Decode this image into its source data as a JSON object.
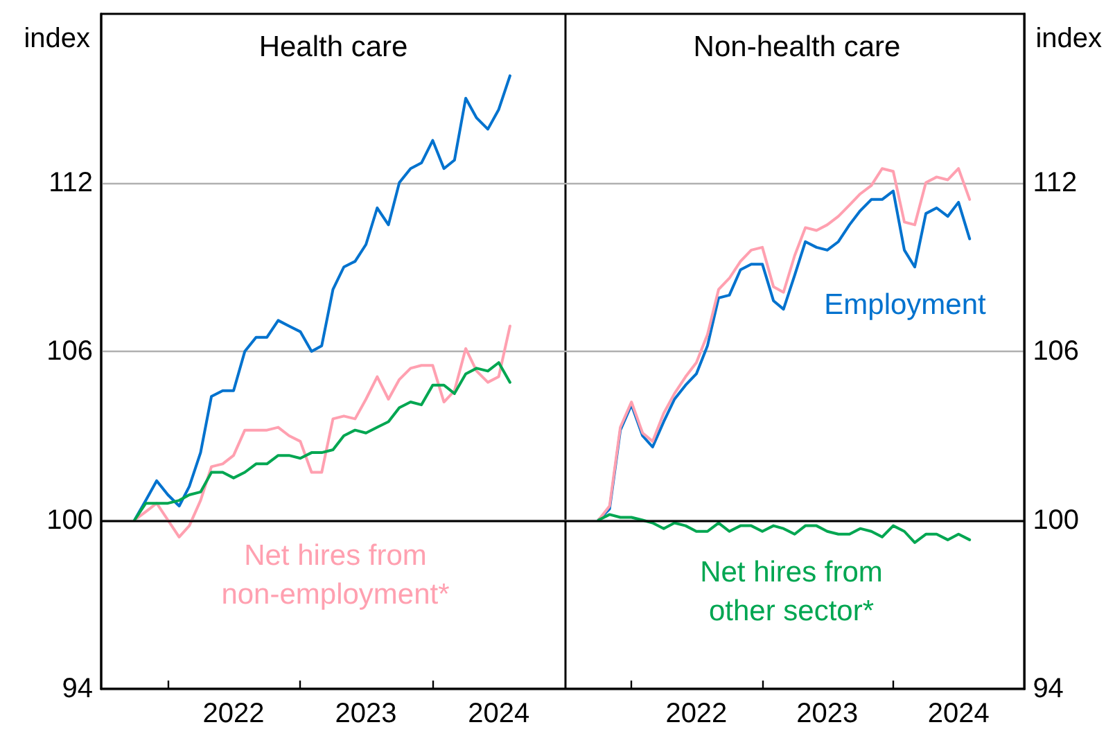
{
  "chart_data": [
    {
      "type": "line",
      "title": "Health care",
      "ylabel": "index",
      "x": [
        "2021-10",
        "2021-11",
        "2021-12",
        "2022-01",
        "2022-02",
        "2022-03",
        "2022-04",
        "2022-05",
        "2022-06",
        "2022-07",
        "2022-08",
        "2022-09",
        "2022-10",
        "2022-11",
        "2022-12",
        "2023-01",
        "2023-02",
        "2023-03",
        "2023-04",
        "2023-05",
        "2023-06",
        "2023-07",
        "2023-08",
        "2023-09",
        "2023-10",
        "2023-11",
        "2023-12",
        "2024-01",
        "2024-02",
        "2024-03",
        "2024-04",
        "2024-05",
        "2024-06",
        "2024-07",
        "2024-08"
      ],
      "series": [
        {
          "color": "#0072ce",
          "values": [
            100,
            100.7,
            101.4,
            100.9,
            100.5,
            101.2,
            102.4,
            104.4,
            104.6,
            104.6,
            106.0,
            106.5,
            106.5,
            107.1,
            106.9,
            106.7,
            106.0,
            106.2,
            108.2,
            109.0,
            109.2,
            109.8,
            111.1,
            110.5,
            112.0,
            112.5,
            112.7,
            113.5,
            112.5,
            112.8,
            115.0,
            114.3,
            113.9,
            114.6,
            115.8
          ]
        },
        {
          "name": "Net hires from\nnon-employment*",
          "color": "#ffa0b0",
          "values": [
            100,
            100.3,
            100.6,
            100.0,
            99.4,
            99.8,
            100.7,
            101.9,
            102.0,
            102.3,
            103.2,
            103.2,
            103.2,
            103.3,
            103.0,
            102.8,
            101.7,
            101.7,
            103.6,
            103.7,
            103.6,
            104.3,
            105.1,
            104.3,
            105.0,
            105.4,
            105.5,
            105.5,
            104.2,
            104.6,
            106.1,
            105.3,
            104.9,
            105.1,
            106.9
          ]
        },
        {
          "color": "#00a651",
          "values": [
            100,
            100.6,
            100.6,
            100.6,
            100.7,
            100.9,
            101.0,
            101.7,
            101.7,
            101.5,
            101.7,
            102.0,
            102.0,
            102.3,
            102.3,
            102.2,
            102.4,
            102.4,
            102.5,
            103.0,
            103.2,
            103.1,
            103.3,
            103.5,
            104.0,
            104.2,
            104.1,
            104.8,
            104.8,
            104.5,
            105.2,
            105.4,
            105.3,
            105.6,
            104.9
          ]
        }
      ],
      "xlim": [
        "2021-07",
        "2025-01"
      ],
      "xticks": [
        {
          "value": "2022-01",
          "label": null
        },
        {
          "value": "2022-07",
          "label": "2022"
        },
        {
          "value": "2023-01",
          "label": null
        },
        {
          "value": "2023-07",
          "label": "2023"
        },
        {
          "value": "2024-01",
          "label": null
        },
        {
          "value": "2024-07",
          "label": "2024"
        }
      ],
      "ylim": [
        94,
        118
      ],
      "yticks": [
        94,
        100,
        106,
        112
      ],
      "ref_lines": [
        {
          "axis": "y",
          "value": 100,
          "color": "#000000"
        }
      ],
      "grid": "y",
      "legend": false,
      "marker": "none",
      "line_style": "solid"
    },
    {
      "type": "line",
      "title": "Non-health care",
      "ylabel": "index",
      "x": [
        "2021-10",
        "2021-11",
        "2021-12",
        "2022-01",
        "2022-02",
        "2022-03",
        "2022-04",
        "2022-05",
        "2022-06",
        "2022-07",
        "2022-08",
        "2022-09",
        "2022-10",
        "2022-11",
        "2022-12",
        "2023-01",
        "2023-02",
        "2023-03",
        "2023-04",
        "2023-05",
        "2023-06",
        "2023-07",
        "2023-08",
        "2023-09",
        "2023-10",
        "2023-11",
        "2023-12",
        "2024-01",
        "2024-02",
        "2024-03",
        "2024-04",
        "2024-05",
        "2024-06",
        "2024-07",
        "2024-08"
      ],
      "series": [
        {
          "name": "Employment",
          "color": "#0072ce",
          "values": [
            100,
            100.4,
            103.2,
            104.1,
            103.0,
            102.6,
            103.5,
            104.3,
            104.8,
            105.2,
            106.2,
            107.9,
            108.0,
            108.9,
            109.1,
            109.1,
            107.8,
            107.5,
            108.7,
            109.9,
            109.7,
            109.6,
            109.9,
            110.5,
            111.0,
            111.4,
            111.4,
            111.7,
            109.6,
            109.0,
            110.9,
            111.1,
            110.8,
            111.3,
            110.0
          ]
        },
        {
          "color": "#ffa0b0",
          "values": [
            100,
            100.5,
            103.3,
            104.2,
            103.1,
            102.8,
            103.8,
            104.5,
            105.1,
            105.6,
            106.6,
            108.2,
            108.6,
            109.2,
            109.6,
            109.7,
            108.3,
            108.1,
            109.4,
            110.4,
            110.3,
            110.5,
            110.8,
            111.2,
            111.6,
            111.9,
            112.5,
            112.4,
            110.6,
            110.5,
            112.0,
            112.2,
            112.1,
            112.5,
            111.4
          ]
        },
        {
          "name": "Net hires from\nother sector*",
          "color": "#00a651",
          "values": [
            100,
            100.2,
            100.1,
            100.1,
            100.0,
            99.9,
            99.7,
            99.9,
            99.8,
            99.6,
            99.6,
            99.9,
            99.6,
            99.8,
            99.8,
            99.6,
            99.8,
            99.7,
            99.5,
            99.8,
            99.8,
            99.6,
            99.5,
            99.5,
            99.7,
            99.6,
            99.4,
            99.8,
            99.6,
            99.2,
            99.5,
            99.5,
            99.3,
            99.5,
            99.3
          ]
        }
      ],
      "xlim": [
        "2021-07",
        "2025-01"
      ],
      "xticks": [
        {
          "value": "2022-01",
          "label": null
        },
        {
          "value": "2022-07",
          "label": "2022"
        },
        {
          "value": "2023-01",
          "label": null
        },
        {
          "value": "2023-07",
          "label": "2023"
        },
        {
          "value": "2024-01",
          "label": null
        },
        {
          "value": "2024-07",
          "label": "2024"
        }
      ],
      "ylim": [
        94,
        118
      ],
      "yticks": [
        94,
        100,
        106,
        112
      ],
      "ref_lines": [
        {
          "axis": "y",
          "value": 100,
          "color": "#000000"
        }
      ],
      "grid": "y",
      "legend": false,
      "marker": "none",
      "line_style": "solid"
    }
  ]
}
